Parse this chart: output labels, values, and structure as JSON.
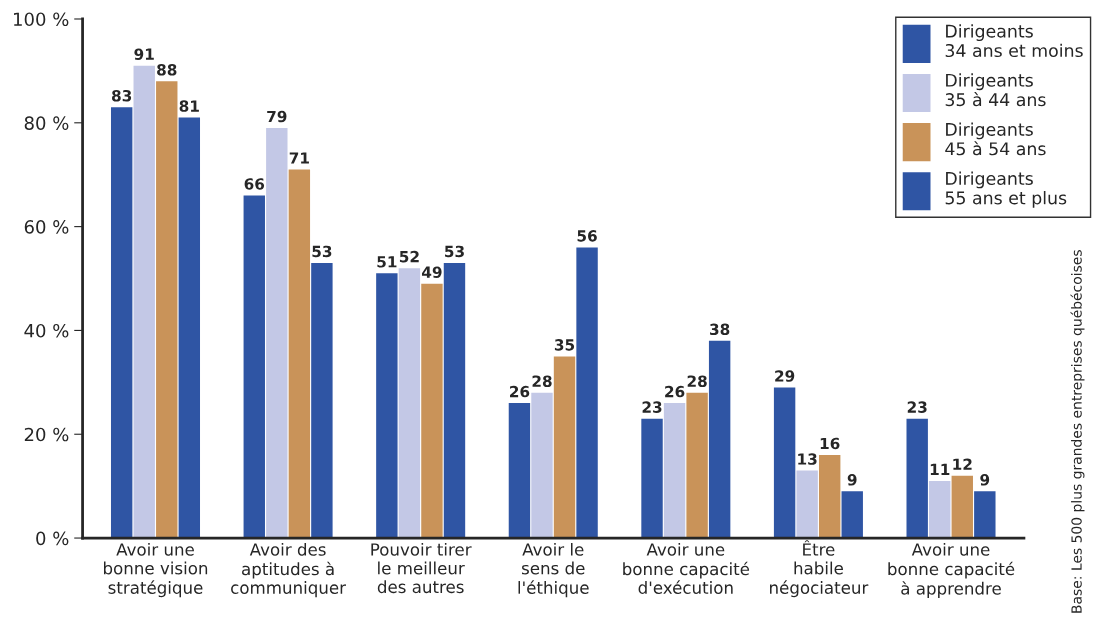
{
  "chart_data": {
    "type": "bar",
    "categories": [
      "Avoir une\nbonne vision\nstratégique",
      "Avoir des\naptitudes à\ncommuniquer",
      "Pouvoir tirer\nle meilleur\ndes autres",
      "Avoir le\nsens de\nl'éthique",
      "Avoir une\nbonne capacité\nd'exécution",
      "Être\nhabile\nnégociateur",
      "Avoir une\nbonne capacité\nà apprendre"
    ],
    "series": [
      {
        "name": "Dirigeants\n34 ans et moins",
        "color": "#2f55a4",
        "values": [
          83,
          66,
          51,
          26,
          23,
          29,
          23
        ]
      },
      {
        "name": "Dirigeants\n35 à 44 ans",
        "color": "#c3c8e6",
        "values": [
          91,
          79,
          52,
          28,
          26,
          13,
          11
        ]
      },
      {
        "name": "Dirigeants\n45 à 54 ans",
        "color": "#c99359",
        "values": [
          88,
          71,
          49,
          35,
          28,
          16,
          12
        ]
      },
      {
        "name": "Dirigeants\n55 ans et plus",
        "color": "#2f55a4",
        "values": [
          81,
          53,
          53,
          56,
          38,
          9,
          9
        ]
      }
    ],
    "ylim": [
      0,
      100
    ],
    "yticks": [
      {
        "value": 0,
        "label": "0 %"
      },
      {
        "value": 20,
        "label": "20 %"
      },
      {
        "value": 40,
        "label": "40 %"
      },
      {
        "value": 60,
        "label": "60 %"
      },
      {
        "value": 80,
        "label": "80 %"
      },
      {
        "value": 100,
        "label": "100 %"
      }
    ],
    "data_labels": true,
    "legend": "top right",
    "grid": false,
    "annotations": [
      "Base: Les 500 plus grandes entreprises québécoises"
    ]
  }
}
